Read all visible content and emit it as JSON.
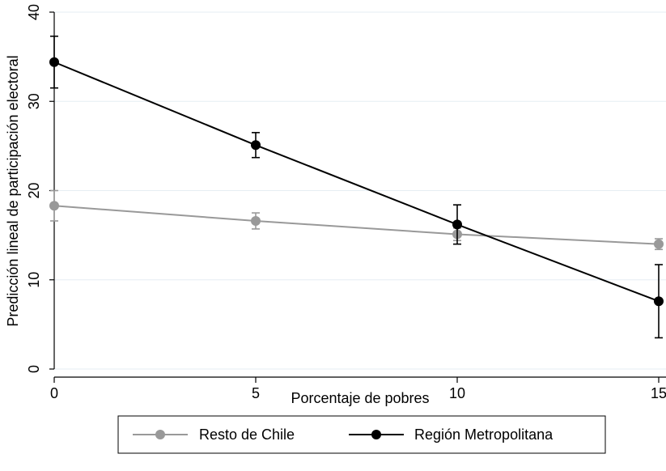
{
  "chart_data": {
    "type": "line",
    "xlabel": "Porcentaje de pobres",
    "ylabel": "Predicción lineal de participación electoral",
    "xlim": [
      0,
      15
    ],
    "ylim": [
      0,
      40
    ],
    "xticks": [
      0,
      5,
      10,
      15
    ],
    "yticks": [
      0,
      10,
      20,
      30,
      40
    ],
    "grid": "horizontal",
    "legend_position": "bottom",
    "series": [
      {
        "name": "Resto de Chile",
        "color": "#999999",
        "x": [
          0,
          5,
          10,
          15
        ],
        "y": [
          18.3,
          16.6,
          15.1,
          14.0
        ],
        "ci_low": [
          16.6,
          15.7,
          14.4,
          13.4
        ],
        "ci_high": [
          20.0,
          17.5,
          15.8,
          14.6
        ]
      },
      {
        "name": "Región Metropolitana",
        "color": "#000000",
        "x": [
          0,
          5,
          10,
          15
        ],
        "y": [
          34.4,
          25.1,
          16.2,
          7.6
        ],
        "ci_low": [
          31.5,
          23.7,
          14.0,
          3.5
        ],
        "ci_high": [
          37.3,
          26.5,
          18.4,
          11.7
        ]
      }
    ]
  }
}
